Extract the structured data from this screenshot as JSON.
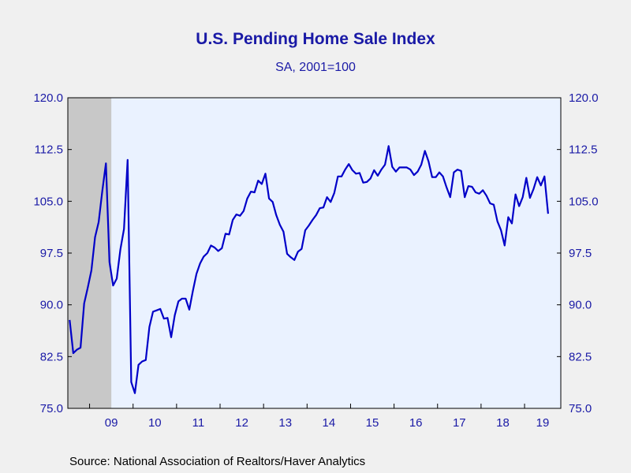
{
  "chart_data": {
    "type": "line",
    "title": "U.S. Pending Home Sale Index",
    "subtitle": "SA, 2001=100",
    "source": "Source:  National Association of Realtors/Haver Analytics",
    "ylim": [
      75.0,
      120.0
    ],
    "y_ticks": [
      "75.0",
      "82.5",
      "90.0",
      "97.5",
      "105.0",
      "112.5",
      "120.0"
    ],
    "x_start": "2008-07",
    "x_end": "2019-10",
    "x_tick_labels": [
      "09",
      "10",
      "11",
      "12",
      "13",
      "14",
      "15",
      "16",
      "17",
      "18",
      "19"
    ],
    "recession_shading": [
      "2008-07",
      "2009-06"
    ],
    "colors": {
      "line": "#0000c8",
      "text": "#1a1aa6",
      "plot_bg": "#eaf2ff",
      "shade": "#c8c8c8",
      "page_bg": "#f0f0f0"
    },
    "series": [
      {
        "start": "2008-07",
        "values": [
          87.8,
          83.0,
          83.5,
          83.8,
          90.2,
          92.5,
          95.0,
          99.8,
          102.0,
          106.5,
          110.5,
          96.2,
          92.8,
          93.8,
          98.0,
          101.0,
          111.0,
          78.8,
          77.2,
          81.3,
          81.8,
          82.0,
          86.8,
          89.0,
          89.2,
          89.4,
          88.0,
          88.1,
          85.3,
          88.5,
          90.5,
          90.9,
          90.9,
          89.3,
          92.0,
          94.5,
          96.0,
          97.0,
          97.5,
          98.6,
          98.3,
          97.8,
          98.2,
          100.3,
          100.2,
          102.3,
          103.1,
          102.9,
          103.6,
          105.4,
          106.4,
          106.3,
          108.0,
          107.5,
          109.0,
          105.4,
          104.9,
          103.0,
          101.6,
          100.6,
          97.4,
          96.9,
          96.5,
          97.7,
          98.1,
          100.8,
          101.5,
          102.3,
          103.0,
          104.0,
          104.1,
          105.6,
          104.9,
          106.2,
          108.6,
          108.6,
          109.6,
          110.4,
          109.5,
          109.0,
          109.1,
          107.7,
          107.8,
          108.3,
          109.5,
          108.7,
          109.6,
          110.3,
          113.0,
          110.0,
          109.3,
          109.9,
          109.9,
          109.9,
          109.6,
          108.8,
          109.3,
          110.3,
          112.3,
          110.8,
          108.5,
          108.5,
          109.2,
          108.6,
          107.0,
          105.6,
          109.2,
          109.6,
          109.4,
          105.6,
          107.2,
          107.1,
          106.3,
          106.1,
          106.6,
          105.8,
          104.7,
          104.5,
          102.1,
          100.8,
          98.6,
          102.7,
          101.8,
          106.0,
          104.3,
          105.6,
          108.4,
          105.5,
          106.8,
          108.5,
          107.3,
          108.6,
          103.2
        ]
      }
    ]
  }
}
